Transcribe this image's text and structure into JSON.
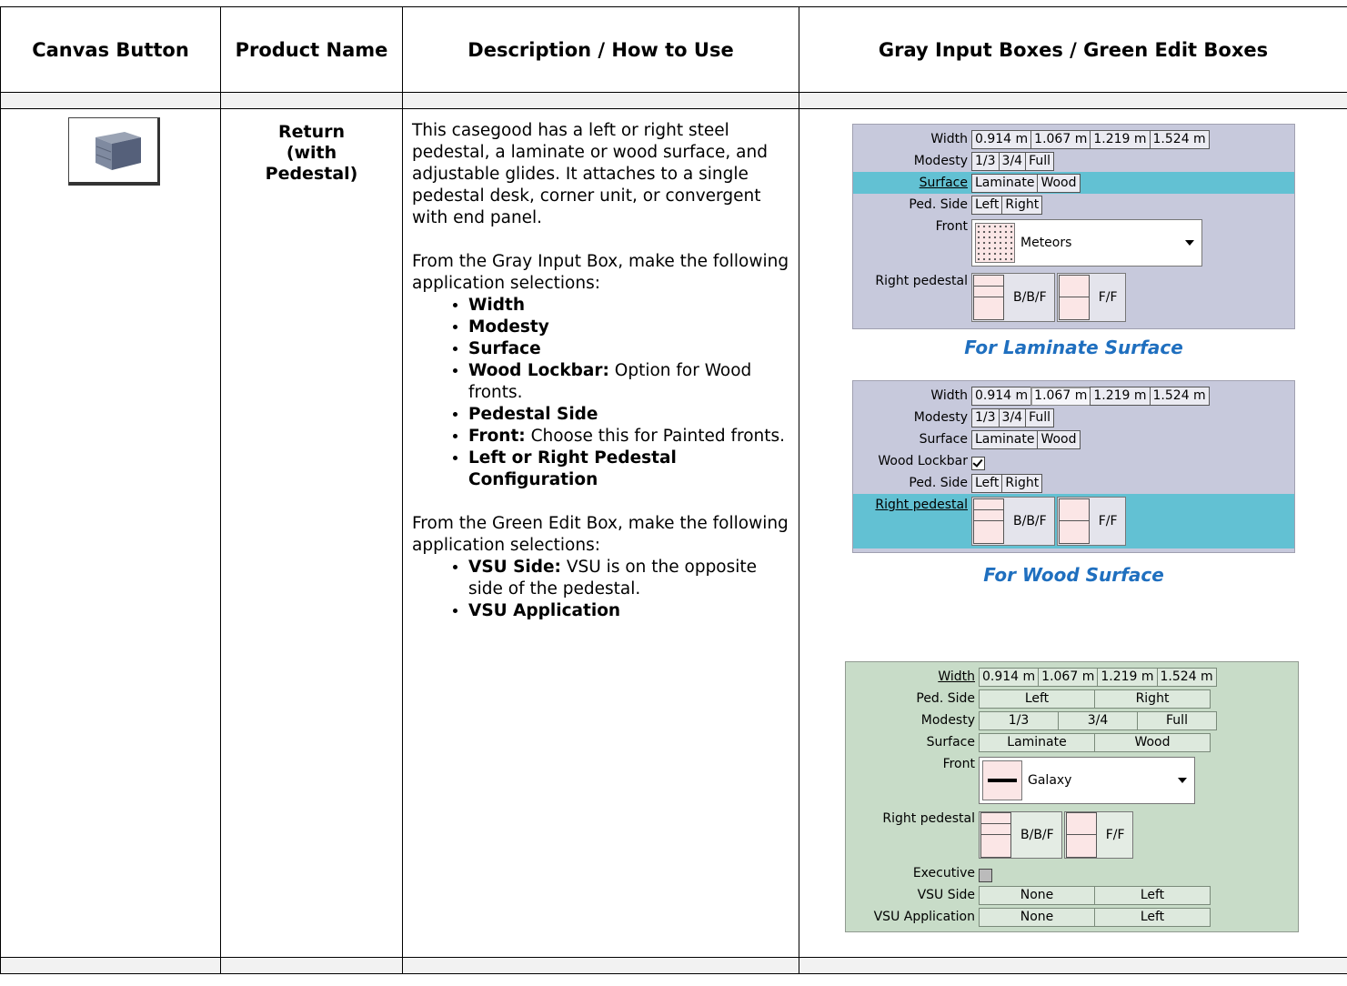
{
  "table": {
    "headers": [
      "Canvas Button",
      "Product Name",
      "Description / How to Use",
      "Gray Input Boxes / Green Edit Boxes"
    ],
    "rows": [
      {
        "product_name": "Return (with Pedestal)",
        "description": {
          "intro": "This casegood has a left or right steel pedestal, a laminate or wood surface, and adjustable glides. It attaches to a single pedestal desk, corner unit, or convergent with end panel.",
          "gray_intro": "From the Gray Input Box, make the following application selections:",
          "gray_items": [
            {
              "bold": "Width"
            },
            {
              "bold": "Modesty"
            },
            {
              "bold": "Surface"
            },
            {
              "bold": "Wood Lockbar:",
              "text": "Option for Wood fronts."
            },
            {
              "bold": "Pedestal Side"
            },
            {
              "bold": "Front:",
              "text": "Choose this for Painted fronts."
            },
            {
              "bold": "Left or Right Pedestal Configuration"
            }
          ],
          "green_intro": "From the Green Edit Box, make the following application selections:",
          "green_items": [
            {
              "bold": "VSU Side:",
              "text": "VSU is on the opposite side of the pedestal."
            },
            {
              "bold": "VSU Application"
            }
          ]
        },
        "panels": [
          {
            "style": "gray",
            "caption": "For Laminate Surface",
            "rows": [
              {
                "label": "Width",
                "options": [
                  "0.914 m",
                  "1.067 m",
                  "1.219 m",
                  "1.524 m"
                ]
              },
              {
                "label": "Modesty",
                "options": [
                  "1/3",
                  "3/4",
                  "Full"
                ]
              },
              {
                "label": "Surface",
                "options": [
                  "Laminate",
                  "Wood"
                ],
                "link": true,
                "highlighted": true
              },
              {
                "label": "Ped. Side",
                "options": [
                  "Left",
                  "Right"
                ]
              },
              {
                "label": "Front",
                "dropdown": "Meteors"
              },
              {
                "label": "Right pedestal",
                "pedestals": [
                  "B/B/F",
                  "F/F"
                ]
              }
            ]
          },
          {
            "style": "gray",
            "caption": "For Wood Surface",
            "rows": [
              {
                "label": "Width",
                "options": [
                  "0.914 m",
                  "1.067 m",
                  "1.219 m",
                  "1.524 m"
                ],
                "selected": 1
              },
              {
                "label": "Modesty",
                "options": [
                  "1/3",
                  "3/4",
                  "Full"
                ]
              },
              {
                "label": "Surface",
                "options": [
                  "Laminate",
                  "Wood"
                ]
              },
              {
                "label": "Wood Lockbar",
                "checkbox": true
              },
              {
                "label": "Ped. Side",
                "options": [
                  "Left",
                  "Right"
                ]
              },
              {
                "label": "Right pedestal",
                "pedestals": [
                  "B/B/F",
                  "F/F"
                ],
                "link": true,
                "highlighted": true
              }
            ]
          },
          {
            "style": "green",
            "rows": [
              {
                "label": "Width",
                "options": [
                  "0.914 m",
                  "1.067 m",
                  "1.219 m",
                  "1.524 m"
                ],
                "link": true
              },
              {
                "label": "Ped. Side",
                "options": [
                  "Left",
                  "Right"
                ]
              },
              {
                "label": "Modesty",
                "options": [
                  "1/3",
                  "3/4",
                  "Full"
                ]
              },
              {
                "label": "Surface",
                "options": [
                  "Laminate",
                  "Wood"
                ]
              },
              {
                "label": "Front",
                "dropdown": "Galaxy"
              },
              {
                "label": "Right pedestal",
                "pedestals": [
                  "B/B/F",
                  "F/F"
                ]
              },
              {
                "label": "Executive",
                "checkbox": false
              },
              {
                "label": "VSU Side",
                "options": [
                  "None",
                  "Left"
                ]
              },
              {
                "label": "VSU Application",
                "options": [
                  "None",
                  "Left"
                ]
              }
            ]
          }
        ]
      }
    ]
  }
}
